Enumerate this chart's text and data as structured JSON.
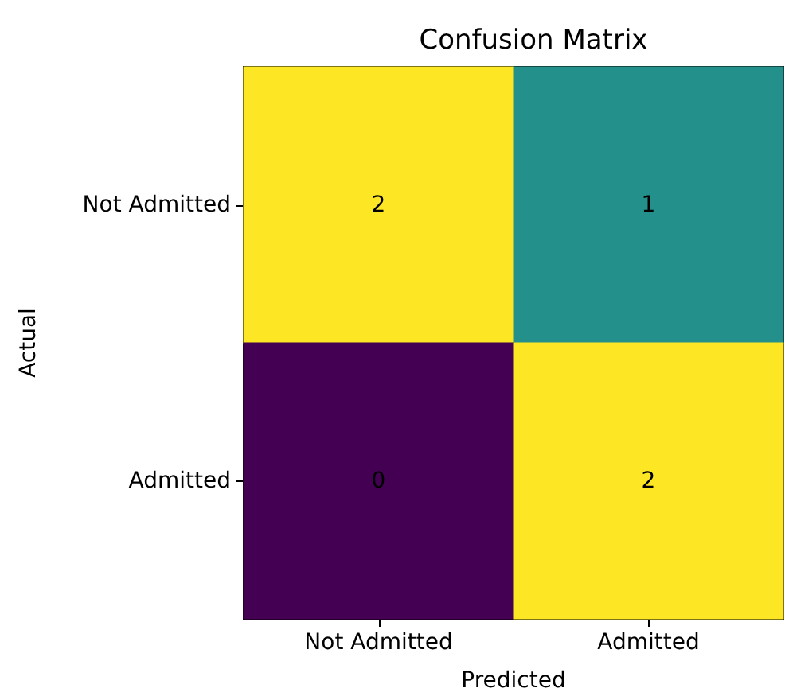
{
  "chart_data": {
    "type": "heatmap",
    "title": "Confusion Matrix",
    "xlabel": "Predicted",
    "ylabel": "Actual",
    "categories": [
      "Not Admitted",
      "Admitted"
    ],
    "y_categories": [
      "Not Admitted",
      "Admitted"
    ],
    "cells": [
      [
        2,
        1
      ],
      [
        0,
        2
      ]
    ],
    "data_labels": true
  }
}
